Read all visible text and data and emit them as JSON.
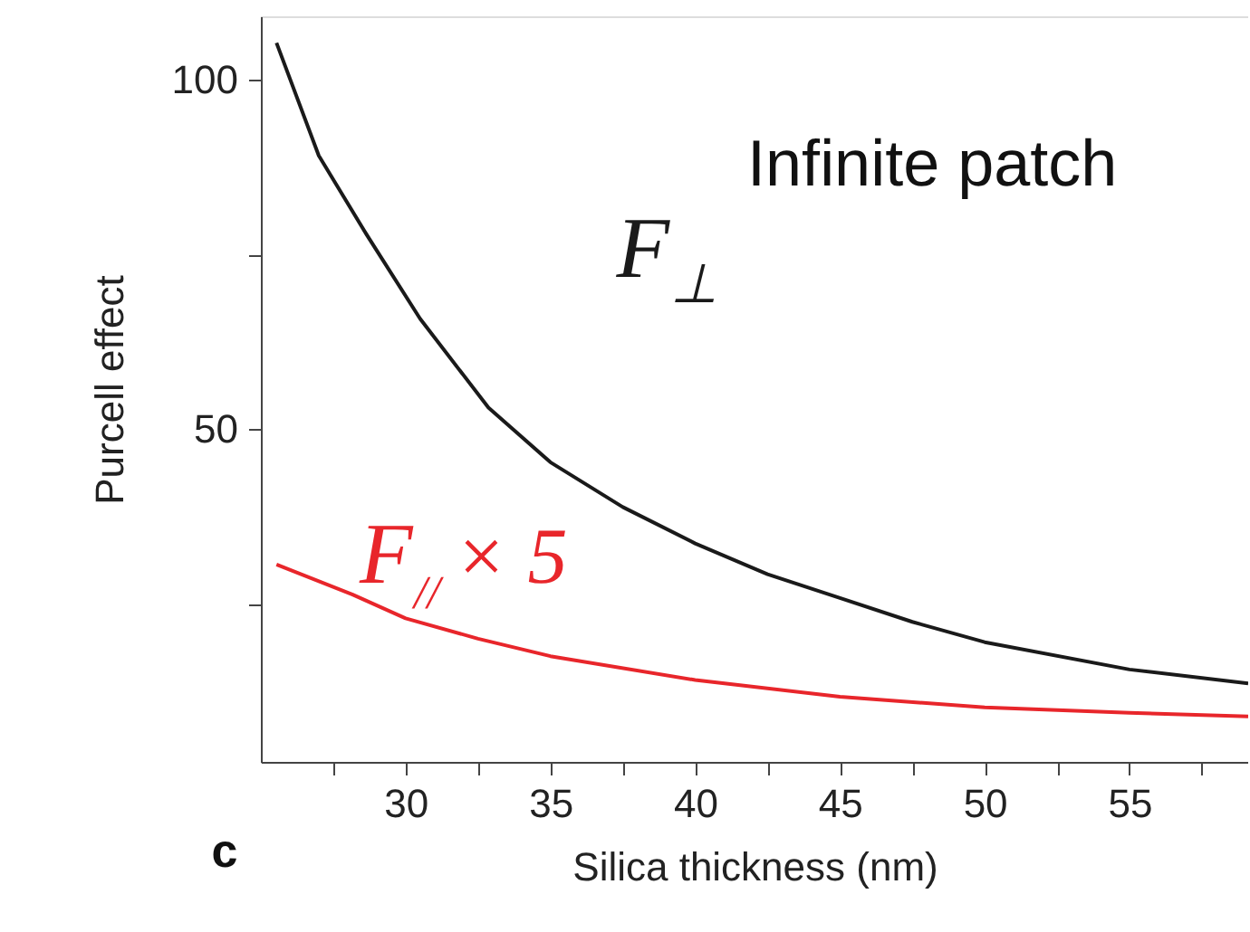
{
  "chart_data": {
    "type": "line",
    "xlabel": "Silica thickness  (nm)",
    "ylabel": "Purcell effect",
    "annotations": [
      "Infinite patch",
      "c"
    ],
    "series": [
      {
        "name": "F⊥",
        "color": "#1a1a1a",
        "x": [
          25.54,
          27.0,
          28.64,
          30.5,
          32.86,
          35,
          37.5,
          40,
          42.5,
          45,
          47.5,
          50,
          55,
          59.1
        ],
        "values": [
          105.2,
          89.1,
          77.9,
          65.8,
          53.1,
          45.3,
          38.9,
          33.7,
          29.3,
          25.9,
          22.5,
          19.6,
          15.7,
          13.7
        ]
      },
      {
        "name": "F$_{//}$ × 5",
        "color": "#e8262b",
        "x": [
          25.54,
          28.17,
          30,
          32.5,
          35,
          40,
          45,
          50,
          55,
          59.1
        ],
        "values": [
          30.7,
          26.4,
          23.0,
          20.1,
          17.6,
          14.2,
          11.8,
          10.3,
          9.5,
          9.0
        ]
      }
    ],
    "xlim": [
      25,
      59.1
    ],
    "ylim": [
      2.5,
      109
    ],
    "xticks": [
      {
        "value": 27.5,
        "label": null
      },
      30,
      {
        "value": 32.5,
        "label": null
      },
      35,
      {
        "value": 37.5,
        "label": null
      },
      40,
      {
        "value": 42.5,
        "label": null
      },
      45,
      {
        "value": 47.5,
        "label": null
      },
      50,
      {
        "value": 52.5,
        "label": null
      },
      55,
      {
        "value": 57.5,
        "label": null
      }
    ],
    "yticks": [
      {
        "value": 25,
        "label": null
      },
      50,
      {
        "value": 75,
        "label": null
      },
      100
    ],
    "grid": false,
    "marker": "none",
    "line_style": "solid"
  }
}
